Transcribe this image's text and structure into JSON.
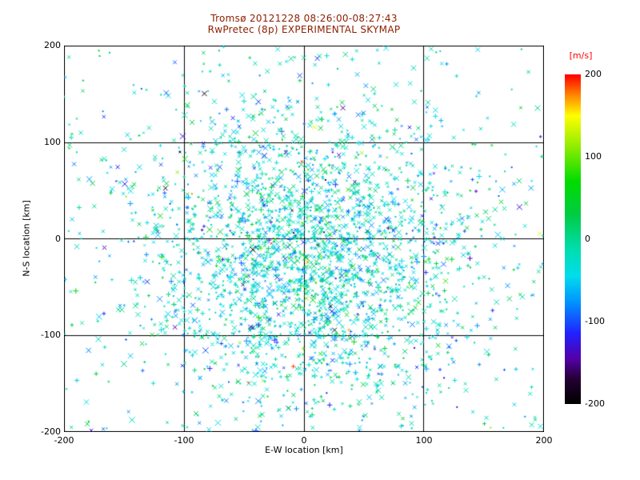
{
  "colors": {
    "title": "#8b1f00",
    "axis": "#000000",
    "colorbar_label": "#ff0000",
    "background": "#ffffff"
  },
  "chart_data": {
    "type": "scatter",
    "title": "Tromsø 20121228 08:26:00-08:27:43",
    "subtitle": "RwPretec (8p) EXPERIMENTAL SKYMAP",
    "xlabel": "E-W location [km]",
    "ylabel": "N-S location [km]",
    "xlim": [
      -200,
      200
    ],
    "ylim": [
      -200,
      200
    ],
    "xticks": [
      -200,
      -100,
      0,
      100,
      200
    ],
    "yticks": [
      -200,
      -100,
      0,
      100,
      200
    ],
    "xtick_labels": [
      "-200",
      "-100",
      "0",
      "100",
      "200"
    ],
    "ytick_labels": [
      "200",
      "100",
      "0",
      "-100",
      "-200"
    ],
    "grid": true,
    "legend_position": "right-colorbar",
    "colorbar": {
      "label": "[m/s]",
      "range": [
        -200,
        200
      ],
      "tick_labels": [
        "200",
        "100",
        "0",
        "-100",
        "-200"
      ],
      "stops": [
        {
          "v": -200,
          "c": "#000000"
        },
        {
          "v": -170,
          "c": "#250035"
        },
        {
          "v": -145,
          "c": "#5500aa"
        },
        {
          "v": -115,
          "c": "#2222ff"
        },
        {
          "v": -75,
          "c": "#0099ff"
        },
        {
          "v": -45,
          "c": "#00ddee"
        },
        {
          "v": -10,
          "c": "#00ddaa"
        },
        {
          "v": 30,
          "c": "#00cc44"
        },
        {
          "v": 70,
          "c": "#00dd00"
        },
        {
          "v": 115,
          "c": "#99ee00"
        },
        {
          "v": 150,
          "c": "#ffff00"
        },
        {
          "v": 175,
          "c": "#ff8800"
        },
        {
          "v": 200,
          "c": "#ff0000"
        }
      ]
    },
    "points": {
      "seed": 20121228,
      "clusters": [
        {
          "cx": 5,
          "cy": -20,
          "sx": 68,
          "sy": 75,
          "n": 2600
        }
      ],
      "background_n": 400,
      "velocity": {
        "mean": -30,
        "sd": 40,
        "outlier_fraction": 0.035
      },
      "marker_mix": {
        "x": 0.6,
        "plus": 0.2,
        "dot": 0.2
      }
    }
  }
}
